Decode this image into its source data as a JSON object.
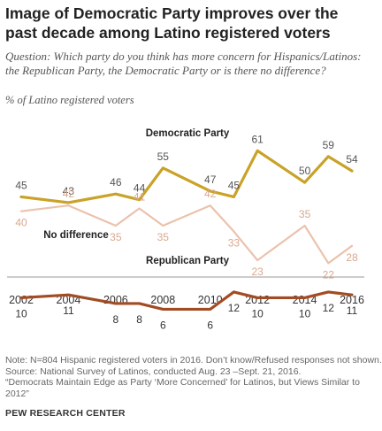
{
  "title": "Image of Democratic Party improves over the past decade among Latino registered voters",
  "question": "Question: Which party do you think has more concern for Hispanics/Latinos: the Republican Party, the Democratic Party or is there no difference?",
  "unit_label": "% of Latino registered voters",
  "notes": [
    "Note: N=804 Hispanic registered voters in 2016. Don’t know/Refused responses not shown.",
    "Source: National Survey of Latinos, conducted Aug. 23 –Sept. 21, 2016.",
    "“Democrats Maintain Edge as Party ‘More Concerned’ for Latinos, but Views Similar to",
    "2012”"
  ],
  "source_org": "PEW RESEARCH CENTER",
  "colors": {
    "democratic": "#c9a227",
    "no_difference": "#ebc2ac",
    "republican": "#a24c24",
    "no_difference_label": "#d9a88e"
  },
  "chart_data": {
    "type": "line",
    "xlim": [
      2002,
      2016
    ],
    "ylim": [
      0,
      70
    ],
    "x_ticks": [
      2002,
      2004,
      2006,
      2008,
      2010,
      2012,
      2014,
      2016
    ],
    "grid": false,
    "series": [
      {
        "name": "Democratic Party",
        "x": [
          2002,
          2004,
          2006,
          2007,
          2008,
          2010,
          2011,
          2012,
          2014,
          2015,
          2016
        ],
        "values": [
          45,
          43,
          46,
          44,
          55,
          47,
          45,
          61,
          50,
          59,
          54
        ]
      },
      {
        "name": "No difference",
        "x": [
          2002,
          2004,
          2006,
          2007,
          2008,
          2010,
          2011,
          2012,
          2014,
          2015,
          2016
        ],
        "values": [
          40,
          42,
          35,
          41,
          35,
          42,
          33,
          23,
          35,
          22,
          28
        ]
      },
      {
        "name": "Republican Party",
        "x": [
          2002,
          2004,
          2006,
          2007,
          2008,
          2010,
          2011,
          2012,
          2014,
          2015,
          2016
        ],
        "values": [
          10,
          11,
          8,
          8,
          6,
          6,
          12,
          10,
          10,
          12,
          11
        ]
      }
    ]
  }
}
